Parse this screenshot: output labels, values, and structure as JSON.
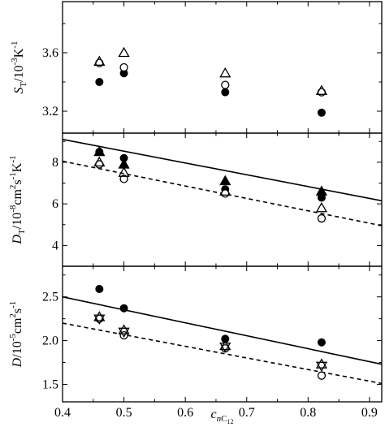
{
  "chart_data": [
    {
      "type": "scatter",
      "panel": "top",
      "ylabel": {
        "main": "S",
        "subscript": "T",
        "unit": "/10",
        "exp": "-3",
        "unit2": "K",
        "exp2": "-1"
      },
      "ylim": [
        3.05,
        3.95
      ],
      "yticks": [
        3.2,
        3.6
      ],
      "xlim": [
        0.4,
        0.92
      ],
      "series": [
        {
          "marker": "filled-circle",
          "x": [
            0.46,
            0.5,
            0.665,
            0.822
          ],
          "y": [
            3.4,
            3.46,
            3.33,
            3.19
          ]
        },
        {
          "marker": "open-circle",
          "x": [
            0.46,
            0.5,
            0.665,
            0.822
          ],
          "y": [
            3.53,
            3.5,
            3.38,
            3.33
          ]
        },
        {
          "marker": "open-triangle",
          "x": [
            0.46,
            0.5,
            0.665,
            0.822
          ],
          "y": [
            3.54,
            3.6,
            3.46,
            3.34
          ]
        }
      ]
    },
    {
      "type": "scatter",
      "panel": "middle",
      "ylabel": {
        "main": "D",
        "subscript": "T",
        "unit": "/10",
        "exp": "-8",
        "unit2": "cm",
        "exp2": "2",
        "unit3": "s",
        "exp3": "-1",
        "unit4": "K",
        "exp4": "-1"
      },
      "ylim": [
        3.0,
        9.4
      ],
      "yticks": [
        4,
        6,
        8
      ],
      "xlim": [
        0.4,
        0.92
      ],
      "series": [
        {
          "marker": "filled-circle",
          "x": [
            0.46,
            0.5,
            0.665,
            0.822
          ],
          "y": [
            8.5,
            8.2,
            6.7,
            6.3
          ]
        },
        {
          "marker": "filled-triangle",
          "x": [
            0.46,
            0.5,
            0.665,
            0.822
          ],
          "y": [
            8.5,
            7.9,
            7.1,
            6.6
          ]
        },
        {
          "marker": "open-circle",
          "x": [
            0.46,
            0.5,
            0.665,
            0.822
          ],
          "y": [
            7.9,
            7.2,
            6.5,
            5.3
          ]
        },
        {
          "marker": "open-triangle",
          "x": [
            0.46,
            0.5,
            0.665,
            0.822
          ],
          "y": [
            8.0,
            7.5,
            6.6,
            5.8
          ]
        }
      ],
      "lines": [
        {
          "style": "solid",
          "x": [
            0.4,
            0.92
          ],
          "y": [
            9.1,
            6.15
          ]
        },
        {
          "style": "dashed",
          "x": [
            0.4,
            0.92
          ],
          "y": [
            8.05,
            4.95
          ]
        }
      ]
    },
    {
      "type": "scatter",
      "panel": "bottom",
      "ylabel": {
        "main": "D",
        "subscript": "",
        "unit": "/10",
        "exp": "-5",
        "unit2": "cm",
        "exp2": "2",
        "unit3": "s",
        "exp3": "-1"
      },
      "ylim": [
        1.3,
        2.85
      ],
      "yticks": [
        1.5,
        2.0,
        2.5
      ],
      "xlabel": {
        "main": "c",
        "subscript": "nC",
        "subsub": "12"
      },
      "xlim": [
        0.4,
        0.92
      ],
      "xticks": [
        0.4,
        0.5,
        0.6,
        0.7,
        0.8,
        0.9
      ],
      "series": [
        {
          "marker": "filled-circle",
          "x": [
            0.46,
            0.5,
            0.665,
            0.822
          ],
          "y": [
            2.59,
            2.37,
            2.02,
            1.98
          ]
        },
        {
          "marker": "open-circle",
          "x": [
            0.46,
            0.5,
            0.665,
            0.822
          ],
          "y": [
            2.25,
            2.06,
            1.91,
            1.6
          ]
        },
        {
          "marker": "open-triangle",
          "x": [
            0.46,
            0.5,
            0.665,
            0.822
          ],
          "y": [
            2.27,
            2.12,
            1.94,
            1.73
          ]
        },
        {
          "marker": "open-triangle-down",
          "x": [
            0.46,
            0.5,
            0.665,
            0.822
          ],
          "y": [
            2.25,
            2.1,
            1.93,
            1.71
          ]
        }
      ],
      "lines": [
        {
          "style": "solid",
          "x": [
            0.4,
            0.92
          ],
          "y": [
            2.5,
            1.73
          ]
        },
        {
          "style": "dashed",
          "x": [
            0.4,
            0.92
          ],
          "y": [
            2.2,
            1.51
          ]
        }
      ]
    }
  ]
}
